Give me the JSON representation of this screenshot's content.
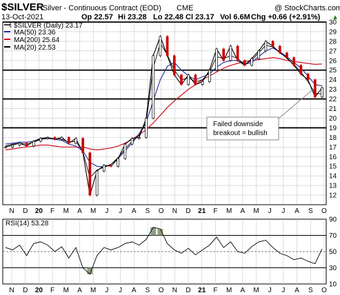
{
  "header": {
    "symbol": "$SILVER",
    "name": "Silver - Continuous Contract (EOD)",
    "exchange": "CME",
    "copyright": "@ StockCharts.com",
    "date": "13-Oct-2021",
    "open": "Op 22.57",
    "high": "Hi 23.28",
    "low": "Lo 22.48",
    "close": "Cl 23.17",
    "volume": "Vol 6.6M",
    "change": "Chg +0.66 (+2.91%)",
    "change_arrow": "▲"
  },
  "legend": {
    "price": "$SILVER (Daily) 23.17",
    "ma50": "MA(50) 23.36",
    "ma200": "MA(200) 25.64",
    "ma20": "MA(20) 22.53"
  },
  "annotation": {
    "line1": "Failed downside",
    "line2": "breakout = bullish"
  },
  "rsi_label": "RSI(14) 53.28",
  "colors": {
    "price": "#000000",
    "up_candle": "#000000",
    "down_candle": "#cc0000",
    "ma50": "#1f2a9a",
    "ma200": "#cc1020",
    "ma20": "#000000",
    "rsi_fill": "#7a8f6a",
    "grid": "#c8c8c8"
  },
  "chart_data": [
    {
      "type": "line",
      "title": "Silver - Continuous Contract (EOD)",
      "x_labels": [
        "N",
        "D",
        "20",
        "F",
        "M",
        "A",
        "M",
        "J",
        "J",
        "A",
        "S",
        "O",
        "N",
        "D",
        "21",
        "F",
        "M",
        "A",
        "M",
        "J",
        "J",
        "A",
        "S",
        "O"
      ],
      "ylim": [
        11,
        30
      ],
      "y_ticks": [
        12,
        13,
        14,
        15,
        16,
        17,
        18,
        19,
        20,
        21,
        22,
        23,
        24,
        25,
        26,
        27,
        28,
        29,
        30
      ],
      "horizontal_lines": [
        19,
        22,
        25,
        30
      ],
      "series": [
        {
          "name": "$SILVER (Daily)",
          "values": [
            17.0,
            17.2,
            17.4,
            17.1,
            17.6,
            17.9,
            18.0,
            17.8,
            18.0,
            17.4,
            17.9,
            16.4,
            12.0,
            14.5,
            15.1,
            15.0,
            15.8,
            17.3,
            17.9,
            18.0,
            20.0,
            26.5,
            28.5,
            26.5,
            24.5,
            23.5,
            24.5,
            23.5,
            23.8,
            25.0,
            27.2,
            26.0,
            27.5,
            26.0,
            25.5,
            26.2,
            27.0,
            28.0,
            27.5,
            26.8,
            26.3,
            25.5,
            24.6,
            24.0,
            22.2,
            23.17
          ]
        },
        {
          "name": "MA(50)",
          "values": [
            17.3,
            17.4,
            17.5,
            17.5,
            17.6,
            17.8,
            17.9,
            17.8,
            17.7,
            17.3,
            17.1,
            16.6,
            15.4,
            15.0,
            14.9,
            15.2,
            15.8,
            16.6,
            17.4,
            18.4,
            19.6,
            21.8,
            24.0,
            25.4,
            25.8,
            25.0,
            24.4,
            24.0,
            24.3,
            24.6,
            25.3,
            25.8,
            26.0,
            26.0,
            25.6,
            25.8,
            26.4,
            27.0,
            27.3,
            26.9,
            26.4,
            25.8,
            25.2,
            24.4,
            23.5,
            23.36
          ]
        },
        {
          "name": "MA(200)",
          "values": [
            16.7,
            16.8,
            16.9,
            17.0,
            17.1,
            17.2,
            17.2,
            17.1,
            17.0,
            17.0,
            17.0,
            17.0,
            16.8,
            16.7,
            16.8,
            16.9,
            17.1,
            17.4,
            17.8,
            18.3,
            18.8,
            19.5,
            20.3,
            21.1,
            21.8,
            22.4,
            23.0,
            23.5,
            24.0,
            24.4,
            24.8,
            25.2,
            25.5,
            25.7,
            25.9,
            26.0,
            26.1,
            26.2,
            26.3,
            26.2,
            26.0,
            25.9,
            25.8,
            25.7,
            25.6,
            25.64
          ]
        },
        {
          "name": "MA(20)",
          "values": [
            17.1,
            17.3,
            17.4,
            17.3,
            17.5,
            17.8,
            17.9,
            17.9,
            17.8,
            17.5,
            17.6,
            16.5,
            13.8,
            14.6,
            14.9,
            15.2,
            15.9,
            16.8,
            17.6,
            18.2,
            19.6,
            25.2,
            27.8,
            26.6,
            25.0,
            24.0,
            24.2,
            23.8,
            24.0,
            24.8,
            26.4,
            26.2,
            26.5,
            26.2,
            25.6,
            26.0,
            26.8,
            27.6,
            27.4,
            26.9,
            26.2,
            25.6,
            24.8,
            23.8,
            22.6,
            22.53
          ]
        }
      ]
    },
    {
      "type": "line",
      "title": "RSI(14)",
      "ylim": [
        10,
        90
      ],
      "y_ticks": [
        10,
        30,
        50,
        70,
        90
      ],
      "reference_lines": [
        30,
        50,
        70
      ],
      "series": [
        {
          "name": "RSI(14)",
          "values": [
            55,
            52,
            58,
            45,
            60,
            62,
            58,
            50,
            56,
            42,
            55,
            30,
            22,
            45,
            55,
            52,
            55,
            60,
            62,
            58,
            65,
            80,
            78,
            60,
            52,
            48,
            54,
            46,
            52,
            58,
            68,
            55,
            62,
            50,
            48,
            56,
            62,
            64,
            55,
            48,
            45,
            40,
            42,
            38,
            35,
            53.28
          ]
        }
      ]
    }
  ]
}
